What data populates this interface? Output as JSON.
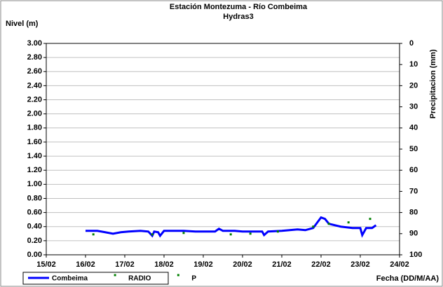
{
  "chart_data": {
    "type": "line",
    "title": "Estación Montezuma - Río Combeima",
    "subtitle": "Hydras3",
    "y_label": "Nivel (m)",
    "y2_label": "Precipitacion (mm)",
    "x_label": "Fecha (DD/M/AA)",
    "xlim": [
      15,
      24
    ],
    "xticks": [
      {
        "value": 15,
        "label": "15/02"
      },
      {
        "value": 16,
        "label": "16/02"
      },
      {
        "value": 17,
        "label": "17/02"
      },
      {
        "value": 18,
        "label": "18/02"
      },
      {
        "value": 19,
        "label": "19/02"
      },
      {
        "value": 20,
        "label": "20/02"
      },
      {
        "value": 21,
        "label": "21/02"
      },
      {
        "value": 22,
        "label": "22/02"
      },
      {
        "value": 23,
        "label": "23/02"
      },
      {
        "value": 24,
        "label": "24/02"
      }
    ],
    "ylim": [
      0,
      3
    ],
    "yticks": [
      {
        "value": 0,
        "label": "0.00"
      },
      {
        "value": 0.2,
        "label": "0.20"
      },
      {
        "value": 0.4,
        "label": "0.40"
      },
      {
        "value": 0.6,
        "label": "0.60"
      },
      {
        "value": 0.8,
        "label": "0.80"
      },
      {
        "value": 1,
        "label": "1.00"
      },
      {
        "value": 1.2,
        "label": "1.20"
      },
      {
        "value": 1.4,
        "label": "1.40"
      },
      {
        "value": 1.6,
        "label": "1.60"
      },
      {
        "value": 1.8,
        "label": "1.80"
      },
      {
        "value": 2,
        "label": "2.00"
      },
      {
        "value": 2.2,
        "label": "2.20"
      },
      {
        "value": 2.4,
        "label": "2.40"
      },
      {
        "value": 2.6,
        "label": "2.60"
      },
      {
        "value": 2.8,
        "label": "2.80"
      },
      {
        "value": 3,
        "label": "3.00"
      }
    ],
    "y2lim": [
      100,
      0
    ],
    "y2ticks": [
      0,
      10,
      20,
      30,
      40,
      50,
      60,
      70,
      80,
      90,
      100
    ],
    "grid": true,
    "series": [
      {
        "name": "Combeima",
        "color": "#0000ff",
        "style": "line",
        "x": [
          16.0,
          16.3,
          16.5,
          16.7,
          16.9,
          17.1,
          17.4,
          17.6,
          17.7,
          17.75,
          17.85,
          17.9,
          18.0,
          18.5,
          18.8,
          19.3,
          19.4,
          19.5,
          19.8,
          20.0,
          20.5,
          20.55,
          20.65,
          21.0,
          21.4,
          21.6,
          21.8,
          22.0,
          22.1,
          22.2,
          22.5,
          22.8,
          23.0,
          23.05,
          23.15,
          23.3,
          23.4
        ],
        "values": [
          0.34,
          0.34,
          0.32,
          0.3,
          0.32,
          0.33,
          0.34,
          0.33,
          0.27,
          0.33,
          0.32,
          0.27,
          0.34,
          0.34,
          0.33,
          0.33,
          0.37,
          0.34,
          0.34,
          0.33,
          0.33,
          0.28,
          0.33,
          0.34,
          0.36,
          0.35,
          0.38,
          0.53,
          0.51,
          0.44,
          0.4,
          0.38,
          0.38,
          0.28,
          0.38,
          0.38,
          0.42
        ]
      },
      {
        "name": "RADIO",
        "color": "#008000",
        "style": "points",
        "x": [
          16.2,
          17.7,
          18.5,
          19.7,
          20.2,
          20.9,
          21.8,
          22.2,
          22.7,
          23.25
        ],
        "values": [
          0.29,
          0.29,
          0.31,
          0.29,
          0.3,
          0.33,
          0.4,
          0.44,
          0.46,
          0.51
        ]
      },
      {
        "name": "P",
        "color": "#008000",
        "style": "points",
        "axis": "y2",
        "x": [],
        "values": []
      }
    ]
  }
}
